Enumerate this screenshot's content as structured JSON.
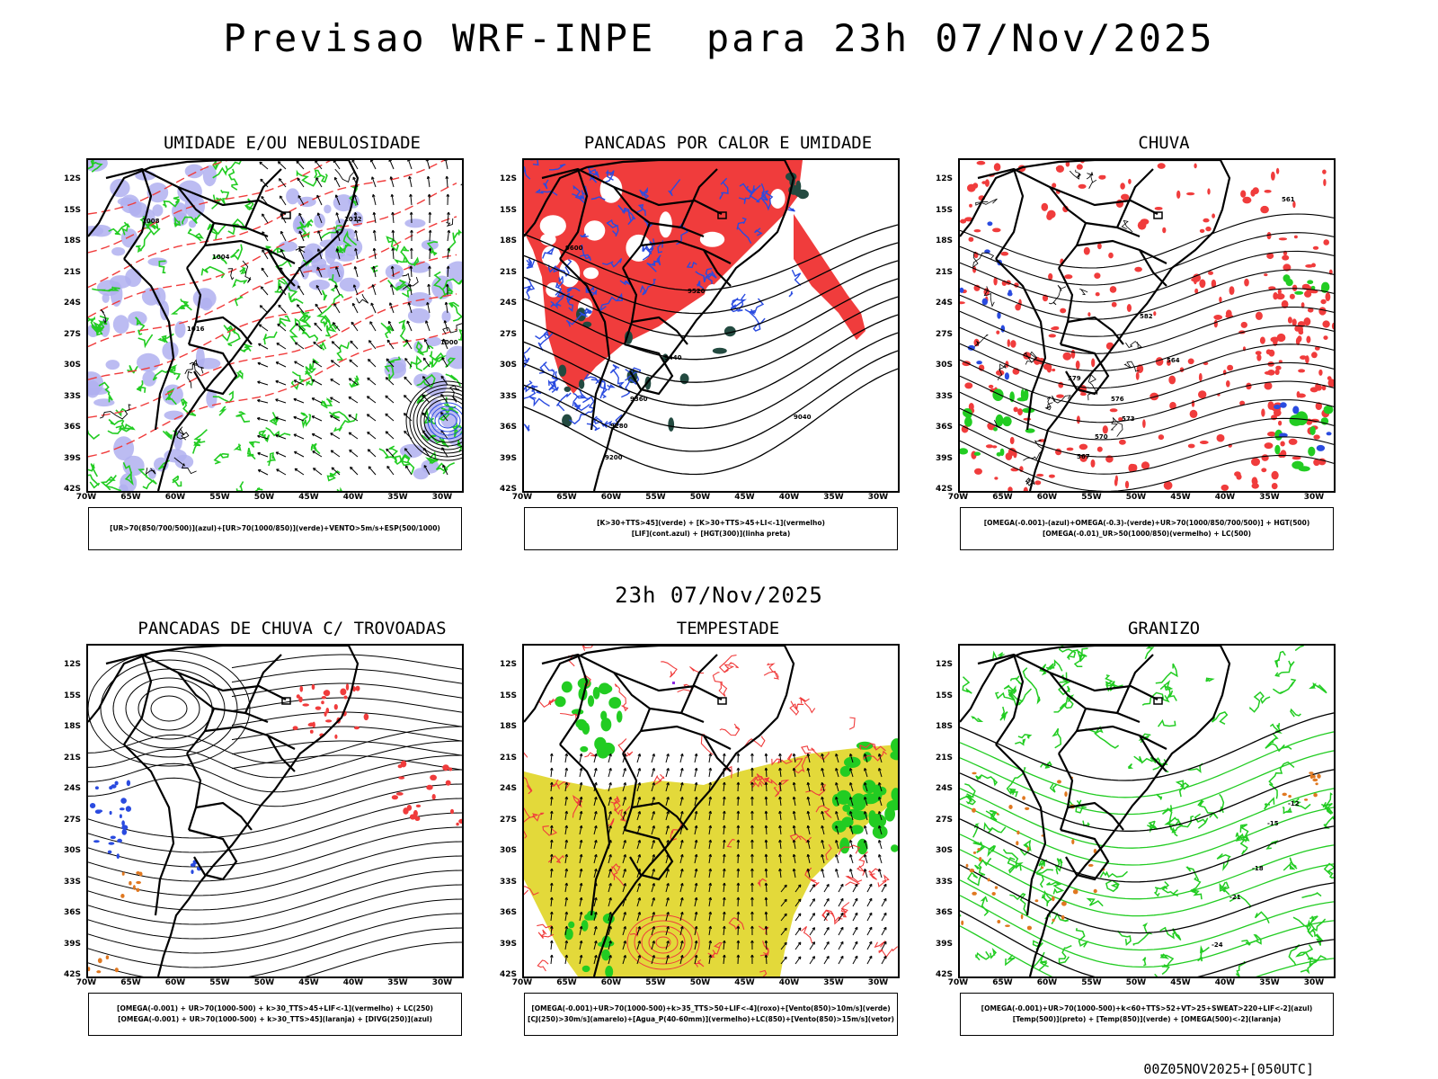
{
  "title": "Previsao WRF-INPE  para 23h 07/Nov/2025",
  "mid_title": "23h 07/Nov/2025",
  "footer": "00Z05NOV2025+[050UTC]",
  "lat_labels": [
    "12S",
    "15S",
    "18S",
    "21S",
    "24S",
    "27S",
    "30S",
    "33S",
    "36S",
    "39S",
    "42S"
  ],
  "lon_labels": [
    "70W",
    "65W",
    "60W",
    "55W",
    "50W",
    "45W",
    "40W",
    "35W",
    "30W"
  ],
  "colors": {
    "red": "#f03c3c",
    "green": "#22cc22",
    "blue": "#2a4be0",
    "lavender": "#b0b0f0",
    "yellow": "#e3d93a",
    "orange": "#e07820",
    "darkteal": "#234a40",
    "contour": "#000000"
  },
  "panels": [
    {
      "id": "umidade",
      "title": "UMIDADE E/OU NEBULOSIDADE",
      "legend": [
        "[UR>70(850/700/500)](azul)+[UR>70(1000/850)](verde)+VENTO>5m/s+ESP(500/1000)"
      ],
      "contour_labels": [
        "1008",
        "1012",
        "1004",
        "1016",
        "1000"
      ]
    },
    {
      "id": "calor",
      "title": "PANCADAS POR CALOR E UMIDADE",
      "legend": [
        "[K>30+TTS>45](verde) + [K>30+TTS>45+LI<-1](vermelho)",
        "[LIF](cont.azul) + [HGT(300)](linha preta)"
      ],
      "contour_labels": [
        "9600",
        "9520",
        "9440",
        "9360",
        "9280",
        "9200",
        "9040"
      ]
    },
    {
      "id": "chuva",
      "title": "CHUVA",
      "legend": [
        "[OMEGA(-0.001)-(azul)+OMEGA(-0.3)-(verde)+UR>70(1000/850/700/500)] + HGT(500)",
        "[OMEGA(-0.01)_UR>50(1000/850)(vermelho) + LC(500)"
      ],
      "contour_labels": [
        "582",
        "579",
        "576",
        "573",
        "570",
        "567",
        "564",
        "561"
      ]
    },
    {
      "id": "trovoadas",
      "title": "PANCADAS DE CHUVA C/ TROVOADAS",
      "legend": [
        "[OMEGA(-0.001) + UR>70(1000-500) + k>30_TTS>45+LIF<-1](vermelho) + LC(250)",
        "[OMEGA(-0.001) + UR>70(1000-500) + k>30_TTS>45](laranja) + [DIVG(250)](azul)"
      ],
      "contour_labels": []
    },
    {
      "id": "tempestade",
      "title": "TEMPESTADE",
      "legend": [
        "[OMEGA(-0.001)+UR>70(1000-500)+k>35_TTS>50+LIF<-4](roxo)+[Vento(850)>10m/s](verde)",
        "[CJ(250)>30m/s](amarelo)+[Agua_P(40-60mm)](vermelho)+LC(850)+[Vento(850)>15m/s](vetor)"
      ],
      "contour_labels": []
    },
    {
      "id": "granizo",
      "title": "GRANIZO",
      "legend": [
        "[OMEGA(-0.001)+UR>70(1000-500)+k<60+TTS>52+VT>25+SWEAT>220+LIF<-2](azul)",
        "[Temp(500)](preto) + [Temp(850)](verde) + [OMEGA(500)<-2](laranja)"
      ],
      "contour_labels": [
        "-12",
        "-15",
        "-18",
        "-21",
        "-24"
      ]
    }
  ]
}
